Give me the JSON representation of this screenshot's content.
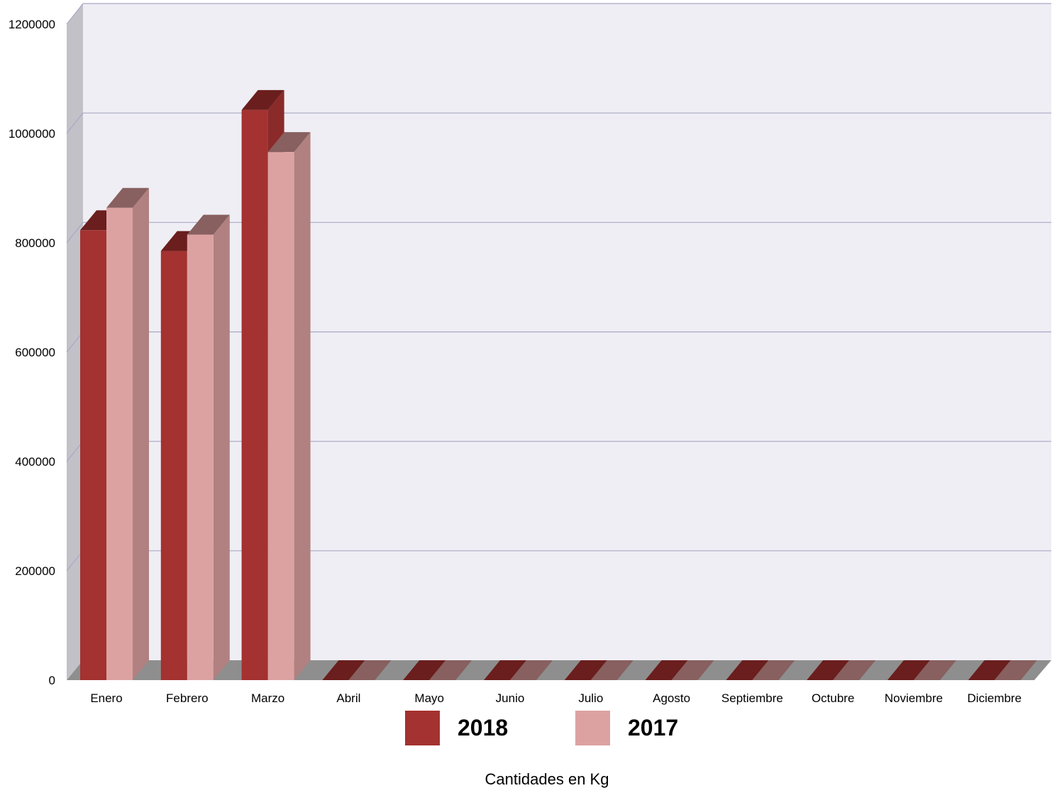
{
  "chart_data": {
    "type": "bar",
    "style": "3d-clustered-column",
    "categories": [
      "Enero",
      "Febrero",
      "Marzo",
      "Abril",
      "Mayo",
      "Junio",
      "Julio",
      "Agosto",
      "Septiembre",
      "Octubre",
      "Noviembre",
      "Diciembre"
    ],
    "series": [
      {
        "name": "2018",
        "values": [
          823000,
          785000,
          1043000,
          0,
          0,
          0,
          0,
          0,
          0,
          0,
          0,
          0
        ]
      },
      {
        "name": "2017",
        "values": [
          864000,
          815000,
          966000,
          0,
          0,
          0,
          0,
          0,
          0,
          0,
          0,
          0
        ]
      }
    ],
    "ylim": [
      0,
      1200000
    ],
    "yticks": [
      "0",
      "200000",
      "400000",
      "600000",
      "800000",
      "1000000",
      "1200000"
    ],
    "xlabel": "Cantidades en Kg",
    "ylabel": "",
    "grid": true,
    "legend_position": "bottom",
    "colors": {
      "series": [
        "#a33230",
        "#dca2a2"
      ],
      "series_top": [
        "#6a1e1d",
        "#87605f"
      ],
      "series_side": [
        "#8a2a29",
        "#b08180"
      ],
      "plot_back": "#efeef4",
      "wall_left": "#c2c1c8",
      "floor": "#8e8e8e",
      "gridline": "#a9a8c6"
    }
  }
}
